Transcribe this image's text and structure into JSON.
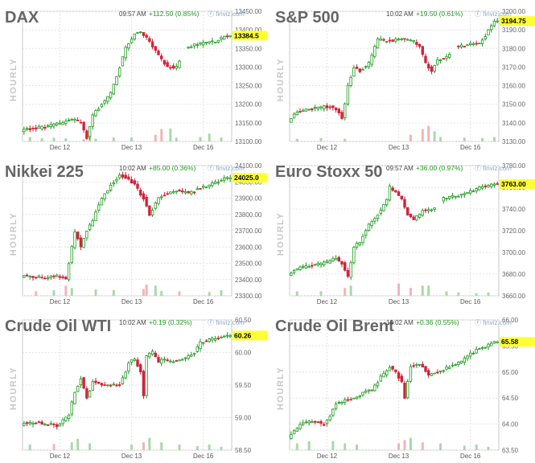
{
  "chart_data": [
    {
      "type": "candlestick",
      "title": "DAX",
      "timestamp": "09:57 AM",
      "change": "+112.50 (0.85%)",
      "source": "finviz.com",
      "side_label": "HOURLY",
      "last_price": 13384.5,
      "last_label": "13384.5",
      "ylim": [
        13100,
        13450
      ],
      "y_ticks": [
        13100,
        13150,
        13200,
        13250,
        13300,
        13350,
        13400,
        13450
      ],
      "y_tick_labels": [
        "13100.00",
        "13150.00",
        "13200.00",
        "13250.00",
        "13300.00",
        "13350.00",
        "13400.00",
        "13450.00"
      ],
      "x_tick_labels": [
        "Dec 12",
        "Dec 13",
        "Dec 16"
      ],
      "x_tick_positions": [
        12,
        36,
        60
      ],
      "n_bars": 70,
      "anchors": [
        [
          0,
          13130
        ],
        [
          8,
          13140
        ],
        [
          14,
          13150
        ],
        [
          17,
          13160
        ],
        [
          20,
          13150
        ],
        [
          22,
          13110
        ],
        [
          24,
          13170
        ],
        [
          27,
          13200
        ],
        [
          30,
          13230
        ],
        [
          33,
          13300
        ],
        [
          35,
          13350
        ],
        [
          38,
          13390
        ],
        [
          40,
          13395
        ],
        [
          43,
          13370
        ],
        [
          46,
          13330
        ],
        [
          49,
          13300
        ],
        [
          52,
          13300
        ],
        [
          55,
          13350
        ],
        [
          58,
          13360
        ],
        [
          62,
          13365
        ],
        [
          66,
          13372
        ],
        [
          69,
          13385
        ]
      ],
      "gaps": [
        [
          53,
          54
        ]
      ],
      "volume_max": 1000,
      "volumes": [
        [
          2,
          200
        ],
        [
          6,
          150
        ],
        [
          10,
          170
        ],
        [
          14,
          140
        ],
        [
          20,
          100
        ],
        [
          22,
          300
        ],
        [
          24,
          120
        ],
        [
          30,
          180
        ],
        [
          36,
          180
        ],
        [
          44,
          300
        ],
        [
          46,
          550
        ],
        [
          49,
          580
        ],
        [
          51,
          170
        ],
        [
          59,
          200
        ],
        [
          62,
          350
        ],
        [
          66,
          180
        ]
      ]
    },
    {
      "type": "candlestick",
      "title": "S&P 500",
      "timestamp": "10:02 AM",
      "change": "+19.50 (0.61%)",
      "source": "finviz.com",
      "side_label": "HOURLY",
      "last_price": 3194.75,
      "last_label": "3194.75",
      "ylim": [
        3130,
        3200
      ],
      "y_ticks": [
        3130,
        3140,
        3150,
        3160,
        3170,
        3180,
        3190,
        3200
      ],
      "y_tick_labels": [
        "3130.00",
        "3140.00",
        "3150.00",
        "3160.00",
        "3170.00",
        "3180.00",
        "3190.00",
        "3200.00"
      ],
      "x_tick_labels": [
        "Dec 12",
        "Dec 13",
        "Dec 16"
      ],
      "x_tick_positions": [
        12,
        36,
        60
      ],
      "n_bars": 70,
      "anchors": [
        [
          0,
          3141
        ],
        [
          3,
          3146
        ],
        [
          10,
          3148
        ],
        [
          14,
          3149
        ],
        [
          17,
          3146
        ],
        [
          18,
          3143
        ],
        [
          19,
          3150
        ],
        [
          20,
          3160
        ],
        [
          22,
          3170
        ],
        [
          24,
          3168
        ],
        [
          27,
          3172
        ],
        [
          30,
          3185
        ],
        [
          33,
          3184
        ],
        [
          38,
          3185
        ],
        [
          42,
          3184
        ],
        [
          44,
          3181
        ],
        [
          46,
          3172
        ],
        [
          48,
          3168
        ],
        [
          50,
          3174
        ],
        [
          53,
          3175
        ],
        [
          56,
          3181
        ],
        [
          60,
          3182
        ],
        [
          64,
          3183
        ],
        [
          66,
          3187
        ],
        [
          69,
          3195
        ]
      ],
      "gaps": [
        [
          54,
          55
        ]
      ],
      "volume_max": 1000,
      "volumes": [
        [
          2,
          120
        ],
        [
          10,
          150
        ],
        [
          18,
          120
        ],
        [
          40,
          300
        ],
        [
          44,
          550
        ],
        [
          46,
          700
        ],
        [
          48,
          450
        ],
        [
          50,
          200
        ],
        [
          58,
          170
        ],
        [
          64,
          150
        ],
        [
          68,
          200
        ]
      ]
    },
    {
      "type": "candlestick",
      "title": "Nikkei 225",
      "timestamp": "10:02 AM",
      "change": "+85.00 (0.36%)",
      "source": "finviz.com",
      "side_label": "HOURLY",
      "last_price": 24025.0,
      "last_label": "24025.0",
      "ylim": [
        23300,
        24100
      ],
      "y_ticks": [
        23300,
        23400,
        23500,
        23600,
        23700,
        23800,
        23900,
        24000,
        24100
      ],
      "y_tick_labels": [
        "23300.00",
        "23400.00",
        "23500.00",
        "23600.00",
        "23700.00",
        "23800.00",
        "23900.00",
        "24000.00",
        "24100.00"
      ],
      "x_tick_labels": [
        "Dec 12",
        "Dec 13",
        "Dec 16"
      ],
      "x_tick_positions": [
        12,
        36,
        60
      ],
      "n_bars": 70,
      "anchors": [
        [
          0,
          23420
        ],
        [
          4,
          23420
        ],
        [
          8,
          23410
        ],
        [
          12,
          23420
        ],
        [
          15,
          23400
        ],
        [
          16,
          23500
        ],
        [
          18,
          23700
        ],
        [
          20,
          23600
        ],
        [
          22,
          23700
        ],
        [
          24,
          23760
        ],
        [
          25,
          23820
        ],
        [
          27,
          23900
        ],
        [
          30,
          23980
        ],
        [
          33,
          24040
        ],
        [
          36,
          24020
        ],
        [
          38,
          23980
        ],
        [
          41,
          23900
        ],
        [
          43,
          23800
        ],
        [
          46,
          23900
        ],
        [
          49,
          23930
        ],
        [
          52,
          23950
        ],
        [
          56,
          23930
        ],
        [
          60,
          23960
        ],
        [
          64,
          23990
        ],
        [
          69,
          24025
        ]
      ],
      "gaps": [],
      "volume_max": 1000,
      "volumes": [
        [
          4,
          200
        ],
        [
          10,
          250
        ],
        [
          14,
          450
        ],
        [
          16,
          350
        ],
        [
          24,
          280
        ],
        [
          30,
          250
        ],
        [
          40,
          300
        ],
        [
          41,
          500
        ],
        [
          44,
          450
        ],
        [
          46,
          220
        ],
        [
          52,
          200
        ],
        [
          62,
          170
        ],
        [
          66,
          250
        ]
      ]
    },
    {
      "type": "candlestick",
      "title": "Euro Stoxx 50",
      "timestamp": "09:57 AM",
      "change": "+36.00 (0.97%)",
      "source": "finviz.com",
      "side_label": "HOURLY",
      "last_price": 3763.0,
      "last_label": "3763.00",
      "ylim": [
        3660,
        3780
      ],
      "y_ticks": [
        3660,
        3680,
        3700,
        3720,
        3740,
        3760,
        3780
      ],
      "y_tick_labels": [
        "3660.00",
        "3680.00",
        "3700.00",
        "3720.00",
        "3740.00",
        "3760.00",
        "3780.00"
      ],
      "x_tick_labels": [
        "Dec 12",
        "Dec 13",
        "Dec 16"
      ],
      "x_tick_positions": [
        12,
        36,
        60
      ],
      "n_bars": 70,
      "anchors": [
        [
          0,
          3680
        ],
        [
          4,
          3686
        ],
        [
          8,
          3688
        ],
        [
          12,
          3690
        ],
        [
          16,
          3695
        ],
        [
          18,
          3690
        ],
        [
          20,
          3678
        ],
        [
          22,
          3705
        ],
        [
          24,
          3710
        ],
        [
          27,
          3725
        ],
        [
          30,
          3735
        ],
        [
          33,
          3748
        ],
        [
          34,
          3760
        ],
        [
          36,
          3755
        ],
        [
          38,
          3750
        ],
        [
          40,
          3735
        ],
        [
          42,
          3730
        ],
        [
          45,
          3738
        ],
        [
          49,
          3740
        ],
        [
          52,
          3750
        ],
        [
          56,
          3752
        ],
        [
          60,
          3755
        ],
        [
          64,
          3760
        ],
        [
          69,
          3763
        ]
      ],
      "gaps": [
        [
          49,
          50
        ]
      ],
      "volume_max": 1000,
      "volumes": [
        [
          2,
          200
        ],
        [
          10,
          200
        ],
        [
          18,
          350
        ],
        [
          20,
          450
        ],
        [
          36,
          550
        ],
        [
          40,
          350
        ],
        [
          44,
          450
        ],
        [
          46,
          450
        ],
        [
          52,
          200
        ],
        [
          56,
          150
        ],
        [
          62,
          120
        ],
        [
          66,
          150
        ]
      ]
    },
    {
      "type": "candlestick",
      "title": "Crude Oil WTI",
      "timestamp": "10:02 AM",
      "change": "+0.19 (0.32%)",
      "source": "finviz.com",
      "side_label": "HOURLY",
      "last_price": 60.26,
      "last_label": "60.26",
      "ylim": [
        58.5,
        60.5
      ],
      "y_ticks": [
        58.5,
        59.0,
        59.5,
        60.0,
        60.5
      ],
      "y_tick_labels": [
        "58.50",
        "59.00",
        "59.50",
        "60.00",
        "60.50"
      ],
      "x_tick_labels": [
        "Dec 12",
        "Dec 13",
        "Dec 16"
      ],
      "x_tick_positions": [
        12,
        36,
        60
      ],
      "n_bars": 70,
      "anchors": [
        [
          0,
          58.9
        ],
        [
          6,
          58.92
        ],
        [
          12,
          58.88
        ],
        [
          14,
          58.95
        ],
        [
          16,
          59.05
        ],
        [
          18,
          59.4
        ],
        [
          20,
          59.6
        ],
        [
          22,
          59.3
        ],
        [
          24,
          59.55
        ],
        [
          27,
          59.5
        ],
        [
          30,
          59.5
        ],
        [
          33,
          59.52
        ],
        [
          35,
          59.7
        ],
        [
          36,
          59.85
        ],
        [
          38,
          59.9
        ],
        [
          40,
          59.7
        ],
        [
          41,
          59.35
        ],
        [
          42,
          59.95
        ],
        [
          44,
          60.0
        ],
        [
          46,
          59.85
        ],
        [
          48,
          59.9
        ],
        [
          50,
          59.85
        ],
        [
          54,
          59.9
        ],
        [
          58,
          60.0
        ],
        [
          60,
          60.15
        ],
        [
          63,
          60.2
        ],
        [
          66,
          60.22
        ],
        [
          69,
          60.26
        ]
      ],
      "gaps": [],
      "volume_max": 1000,
      "volumes": [
        [
          2,
          250
        ],
        [
          10,
          270
        ],
        [
          16,
          350
        ],
        [
          18,
          500
        ],
        [
          22,
          300
        ],
        [
          36,
          250
        ],
        [
          40,
          350
        ],
        [
          42,
          550
        ],
        [
          46,
          350
        ],
        [
          52,
          250
        ],
        [
          58,
          180
        ],
        [
          62,
          250
        ],
        [
          66,
          150
        ]
      ]
    },
    {
      "type": "candlestick",
      "title": "Crude Oil Brent",
      "timestamp": "10:02 AM",
      "change": "+0.36 (0.55%)",
      "source": "finviz.com",
      "side_label": "HOURLY",
      "last_price": 65.58,
      "last_label": "65.58",
      "ylim": [
        63.5,
        66.0
      ],
      "y_ticks": [
        63.5,
        64.0,
        64.5,
        65.0,
        65.5,
        66.0
      ],
      "y_tick_labels": [
        "63.50",
        "64.00",
        "64.50",
        "65.00",
        "65.50",
        "66.00"
      ],
      "x_tick_labels": [
        "Dec 12",
        "Dec 13",
        "Dec 16"
      ],
      "x_tick_positions": [
        12,
        36,
        60
      ],
      "n_bars": 70,
      "anchors": [
        [
          0,
          63.75
        ],
        [
          4,
          64.0
        ],
        [
          8,
          64.05
        ],
        [
          12,
          64.0
        ],
        [
          14,
          64.15
        ],
        [
          16,
          64.4
        ],
        [
          19,
          64.45
        ],
        [
          22,
          64.5
        ],
        [
          25,
          64.6
        ],
        [
          28,
          64.65
        ],
        [
          31,
          64.9
        ],
        [
          34,
          65.1
        ],
        [
          36,
          65.0
        ],
        [
          38,
          64.8
        ],
        [
          39,
          64.5
        ],
        [
          41,
          65.1
        ],
        [
          44,
          65.15
        ],
        [
          47,
          64.95
        ],
        [
          50,
          65.0
        ],
        [
          54,
          65.1
        ],
        [
          58,
          65.2
        ],
        [
          61,
          65.35
        ],
        [
          64,
          65.45
        ],
        [
          66,
          65.5
        ],
        [
          69,
          65.58
        ]
      ],
      "gaps": [],
      "volume_max": 1000,
      "volumes": [
        [
          2,
          300
        ],
        [
          6,
          400
        ],
        [
          14,
          400
        ],
        [
          18,
          300
        ],
        [
          22,
          250
        ],
        [
          36,
          300
        ],
        [
          38,
          450
        ],
        [
          40,
          550
        ],
        [
          44,
          350
        ],
        [
          50,
          300
        ],
        [
          58,
          200
        ],
        [
          62,
          250
        ],
        [
          66,
          150
        ]
      ]
    }
  ]
}
